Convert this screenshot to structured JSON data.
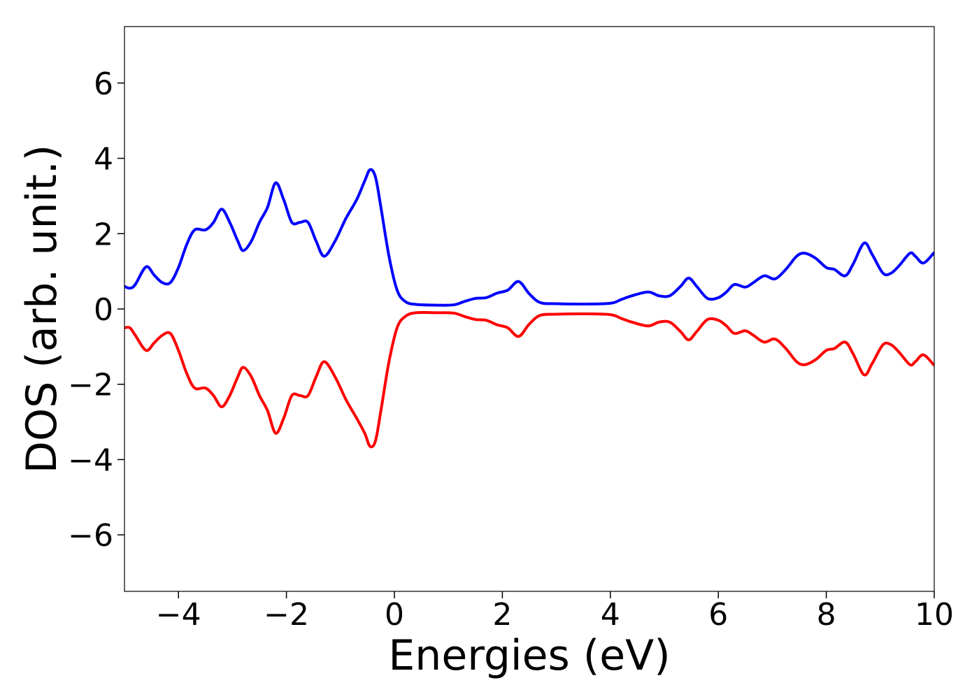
{
  "chart_data": {
    "type": "line",
    "xlabel": "Energies (eV)",
    "ylabel": "DOS (arb. unit.)",
    "x": [
      -5,
      -4.9,
      -4.8,
      -4.6,
      -4.45,
      -4.3,
      -4.15,
      -4.0,
      -3.85,
      -3.7,
      -3.5,
      -3.35,
      -3.2,
      -3.05,
      -2.9,
      -2.8,
      -2.65,
      -2.5,
      -2.35,
      -2.2,
      -2.05,
      -1.9,
      -1.75,
      -1.6,
      -1.45,
      -1.3,
      -1.1,
      -0.9,
      -0.7,
      -0.55,
      -0.45,
      -0.35,
      -0.25,
      -0.1,
      0.05,
      0.2,
      0.4,
      0.8,
      1.1,
      1.3,
      1.5,
      1.7,
      1.9,
      2.1,
      2.3,
      2.5,
      2.7,
      3.0,
      3.5,
      4.0,
      4.2,
      4.4,
      4.7,
      4.9,
      5.1,
      5.3,
      5.45,
      5.6,
      5.8,
      6.0,
      6.15,
      6.3,
      6.5,
      6.65,
      6.85,
      7.05,
      7.25,
      7.45,
      7.6,
      7.8,
      8.0,
      8.15,
      8.35,
      8.5,
      8.7,
      8.85,
      9.05,
      9.2,
      9.35,
      9.55,
      9.65,
      9.8,
      10
    ],
    "series": [
      {
        "color": "#0000ff",
        "values": [
          0.6,
          0.55,
          0.65,
          1.12,
          0.9,
          0.7,
          0.7,
          1.1,
          1.7,
          2.1,
          2.1,
          2.3,
          2.65,
          2.3,
          1.8,
          1.55,
          1.8,
          2.3,
          2.7,
          3.35,
          2.9,
          2.3,
          2.3,
          2.3,
          1.8,
          1.4,
          1.8,
          2.4,
          2.9,
          3.4,
          3.7,
          3.5,
          2.7,
          1.4,
          0.5,
          0.2,
          0.12,
          0.1,
          0.11,
          0.2,
          0.28,
          0.3,
          0.42,
          0.5,
          0.73,
          0.4,
          0.17,
          0.14,
          0.13,
          0.15,
          0.25,
          0.35,
          0.45,
          0.35,
          0.35,
          0.6,
          0.82,
          0.6,
          0.28,
          0.3,
          0.45,
          0.65,
          0.58,
          0.7,
          0.88,
          0.8,
          1.05,
          1.4,
          1.48,
          1.35,
          1.1,
          1.05,
          0.88,
          1.2,
          1.75,
          1.45,
          0.95,
          0.95,
          1.15,
          1.48,
          1.4,
          1.22,
          1.5
        ]
      },
      {
        "color": "#ff0000",
        "values": [
          -0.5,
          -0.5,
          -0.7,
          -1.1,
          -0.9,
          -0.7,
          -0.65,
          -1.1,
          -1.7,
          -2.1,
          -2.1,
          -2.3,
          -2.6,
          -2.3,
          -1.8,
          -1.55,
          -1.8,
          -2.3,
          -2.7,
          -3.3,
          -2.9,
          -2.3,
          -2.3,
          -2.3,
          -1.8,
          -1.4,
          -1.8,
          -2.4,
          -2.9,
          -3.3,
          -3.65,
          -3.5,
          -2.7,
          -1.4,
          -0.5,
          -0.2,
          -0.1,
          -0.1,
          -0.11,
          -0.2,
          -0.28,
          -0.3,
          -0.42,
          -0.5,
          -0.73,
          -0.4,
          -0.17,
          -0.14,
          -0.13,
          -0.15,
          -0.25,
          -0.35,
          -0.45,
          -0.35,
          -0.35,
          -0.6,
          -0.82,
          -0.6,
          -0.28,
          -0.3,
          -0.45,
          -0.65,
          -0.58,
          -0.7,
          -0.88,
          -0.8,
          -1.05,
          -1.4,
          -1.48,
          -1.35,
          -1.1,
          -1.05,
          -0.88,
          -1.2,
          -1.75,
          -1.45,
          -0.95,
          -0.95,
          -1.15,
          -1.48,
          -1.4,
          -1.22,
          -1.5
        ]
      }
    ],
    "xlim": [
      -5,
      10
    ],
    "xticks": [
      {
        "value": -4,
        "label": "−4"
      },
      {
        "value": -2,
        "label": "−2"
      },
      0,
      2,
      4,
      6,
      8,
      10
    ],
    "ylim": [
      -7.5,
      7.5
    ],
    "yticks": [
      {
        "value": -6,
        "label": "−6"
      },
      {
        "value": -4,
        "label": "−4"
      },
      {
        "value": -2,
        "label": "−2"
      },
      0,
      2,
      4,
      6
    ]
  }
}
